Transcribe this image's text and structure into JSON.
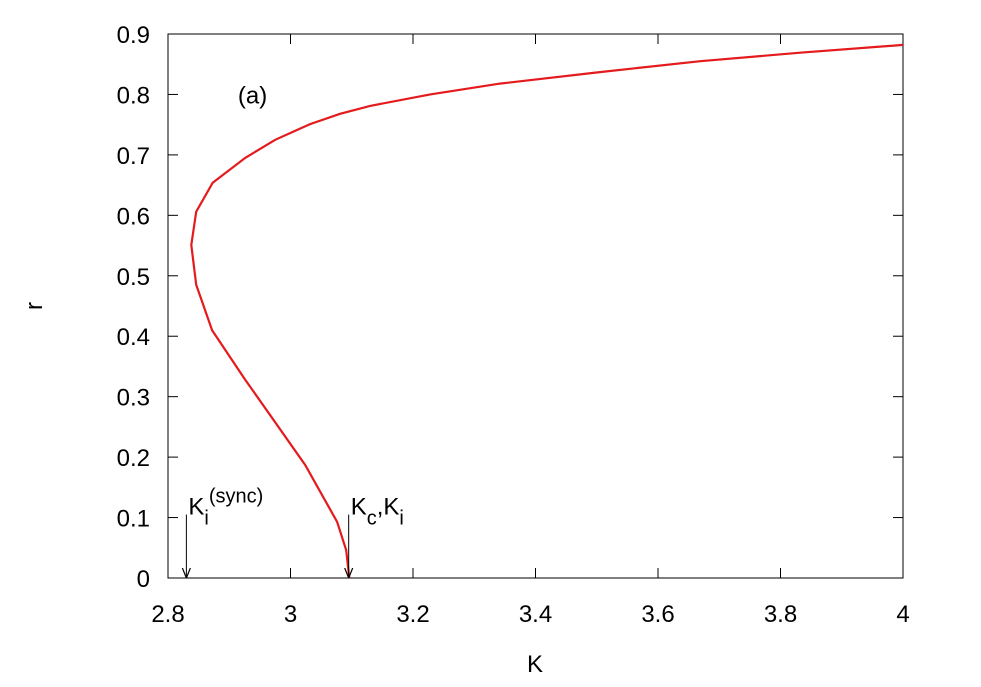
{
  "chart_data": {
    "type": "line",
    "xlabel": "K",
    "ylabel": "r",
    "xlim": [
      2.8,
      4
    ],
    "ylim": [
      0,
      0.9
    ],
    "xticks": [
      2.8,
      3,
      3.2,
      3.4,
      3.6,
      3.8,
      4
    ],
    "yticks": [
      0,
      0.1,
      0.2,
      0.3,
      0.4,
      0.5,
      0.6,
      0.7,
      0.8,
      0.9
    ],
    "grid": false,
    "series": [
      {
        "color": "#e41a1c",
        "x": [
          3.096,
          3.091,
          3.076,
          3.024,
          2.926,
          2.872,
          2.846,
          2.838,
          2.846,
          2.873,
          2.926,
          2.975,
          3.032,
          3.081,
          3.13,
          3.228,
          3.342,
          3.505,
          3.669,
          3.832,
          4.0
        ],
        "values": [
          0,
          0.046,
          0.093,
          0.187,
          0.328,
          0.41,
          0.485,
          0.551,
          0.606,
          0.654,
          0.695,
          0.725,
          0.751,
          0.768,
          0.781,
          0.8,
          0.818,
          0.837,
          0.855,
          0.869,
          0.882
        ]
      }
    ],
    "annotations": [
      {
        "parts": [
          {
            "text": "(a)"
          }
        ],
        "x": 2.95,
        "y": 0.8
      },
      {
        "parts": [
          {
            "text": "K"
          },
          {
            "text": "i",
            "sub": true
          },
          {
            "text": "(sync)",
            "sup": true
          }
        ],
        "x": 2.83,
        "y": 0.1,
        "arrow": true
      },
      {
        "parts": [
          {
            "text": "K"
          },
          {
            "text": "c",
            "sub": true
          },
          {
            "text": ",K"
          },
          {
            "text": "i",
            "sub": true
          }
        ],
        "x": 3.095,
        "y": 0.1,
        "arrow": true
      }
    ]
  }
}
